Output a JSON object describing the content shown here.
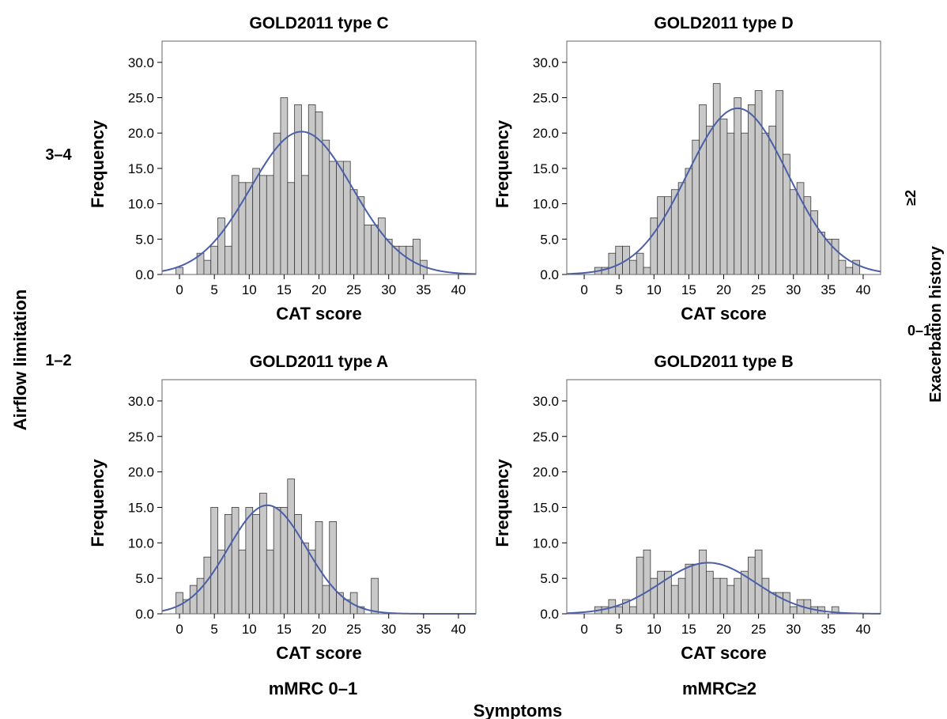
{
  "figure": {
    "row_labels": [
      "3–4",
      "1–2"
    ],
    "column_labels": [
      "mMRC 0–1",
      "mMRC≥2"
    ],
    "right_labels": [
      "≥2",
      "0–1"
    ],
    "left_axis_title": "Airflow limitation",
    "right_axis_title": "Exacerbation history",
    "bottom_axis_title": "Symptoms"
  },
  "colors": {
    "bar_fill": "#c8c8c8",
    "bar_stroke": "#3a3a3a",
    "curve": "#4a5fa8",
    "frame": "#666666"
  },
  "chart_data": [
    {
      "type": "bar",
      "title": "GOLD2011 type C",
      "xlabel": "CAT score",
      "ylabel": "Frequency",
      "xlim": [
        -2.5,
        42.5
      ],
      "ylim": [
        0,
        33
      ],
      "xticks": [
        "0",
        "5",
        "10",
        "15",
        "20",
        "25",
        "30",
        "35",
        "40"
      ],
      "yticks": [
        "0.0",
        "5.0",
        "10.0",
        "15.0",
        "20.0",
        "25.0",
        "30.0"
      ],
      "x": [
        0,
        1,
        2,
        3,
        4,
        5,
        6,
        7,
        8,
        9,
        10,
        11,
        12,
        13,
        14,
        15,
        16,
        17,
        18,
        19,
        20,
        21,
        22,
        23,
        24,
        25,
        26,
        27,
        28,
        29,
        30,
        31,
        32,
        33,
        34,
        35,
        36
      ],
      "values": [
        1,
        0,
        0,
        3,
        2,
        4,
        8,
        4,
        14,
        13,
        13,
        15,
        14,
        14,
        20,
        25,
        13,
        24,
        14,
        24,
        23,
        19,
        16,
        16,
        16,
        12,
        11,
        7,
        7,
        8,
        5,
        4,
        4,
        4,
        5,
        2,
        0
      ],
      "curve": {
        "mean": 17.5,
        "peak": 20.2,
        "sd": 7.3
      }
    },
    {
      "type": "bar",
      "title": "GOLD2011 type D",
      "xlabel": "CAT score",
      "ylabel": "Frequency",
      "xlim": [
        -2.5,
        42.5
      ],
      "ylim": [
        0,
        33
      ],
      "xticks": [
        "0",
        "5",
        "10",
        "15",
        "20",
        "25",
        "30",
        "35",
        "40"
      ],
      "yticks": [
        "0.0",
        "5.0",
        "10.0",
        "15.0",
        "20.0",
        "25.0",
        "30.0"
      ],
      "x": [
        2,
        3,
        4,
        5,
        6,
        7,
        8,
        9,
        10,
        11,
        12,
        13,
        14,
        15,
        16,
        17,
        18,
        19,
        20,
        21,
        22,
        23,
        24,
        25,
        26,
        27,
        28,
        29,
        30,
        31,
        32,
        33,
        34,
        35,
        36,
        37,
        38,
        39
      ],
      "values": [
        1,
        1,
        3,
        4,
        4,
        2,
        3,
        1,
        8,
        11,
        11,
        12,
        13,
        15,
        19,
        24,
        21,
        27,
        22,
        20,
        25,
        20,
        24,
        26,
        20,
        21,
        26,
        17,
        12,
        13,
        11,
        9,
        6,
        5,
        5,
        2,
        1,
        2
      ],
      "curve": {
        "mean": 22.0,
        "peak": 23.5,
        "sd": 7.2
      }
    },
    {
      "type": "bar",
      "title": "GOLD2011 type A",
      "xlabel": "CAT score",
      "ylabel": "Frequency",
      "xlim": [
        -2.5,
        42.5
      ],
      "ylim": [
        0,
        33
      ],
      "xticks": [
        "0",
        "5",
        "10",
        "15",
        "20",
        "25",
        "30",
        "35",
        "40"
      ],
      "yticks": [
        "0.0",
        "5.0",
        "10.0",
        "15.0",
        "20.0",
        "25.0",
        "30.0"
      ],
      "x": [
        0,
        1,
        2,
        3,
        4,
        5,
        6,
        7,
        8,
        9,
        10,
        11,
        12,
        13,
        14,
        15,
        16,
        17,
        18,
        19,
        20,
        21,
        22,
        23,
        24,
        25,
        26,
        27,
        28
      ],
      "values": [
        3,
        2,
        4,
        5,
        8,
        15,
        9,
        14,
        15,
        9,
        15,
        14,
        17,
        9,
        15,
        15,
        19,
        14,
        10,
        9,
        13,
        4,
        13,
        3,
        2,
        3,
        1,
        0,
        5
      ],
      "curve": {
        "mean": 12.6,
        "peak": 15.3,
        "sd": 5.6
      }
    },
    {
      "type": "bar",
      "title": "GOLD2011 type B",
      "xlabel": "CAT score",
      "ylabel": "Frequency",
      "xlim": [
        -2.5,
        42.5
      ],
      "ylim": [
        0,
        33
      ],
      "xticks": [
        "0",
        "5",
        "10",
        "15",
        "20",
        "25",
        "30",
        "35",
        "40"
      ],
      "yticks": [
        "0.0",
        "5.0",
        "10.0",
        "15.0",
        "20.0",
        "25.0",
        "30.0"
      ],
      "x": [
        2,
        3,
        4,
        5,
        6,
        7,
        8,
        9,
        10,
        11,
        12,
        13,
        14,
        15,
        16,
        17,
        18,
        19,
        20,
        21,
        22,
        23,
        24,
        25,
        26,
        27,
        28,
        29,
        30,
        31,
        32,
        33,
        34,
        35,
        36
      ],
      "values": [
        1,
        1,
        2,
        1,
        2,
        1,
        8,
        9,
        5,
        6,
        6,
        4,
        5,
        7,
        7,
        9,
        6,
        5,
        5,
        4,
        5,
        6,
        8,
        9,
        5,
        3,
        3,
        3,
        1,
        2,
        2,
        1,
        1,
        0,
        1
      ],
      "curve": {
        "mean": 17.8,
        "peak": 7.2,
        "sd": 6.8
      }
    }
  ]
}
